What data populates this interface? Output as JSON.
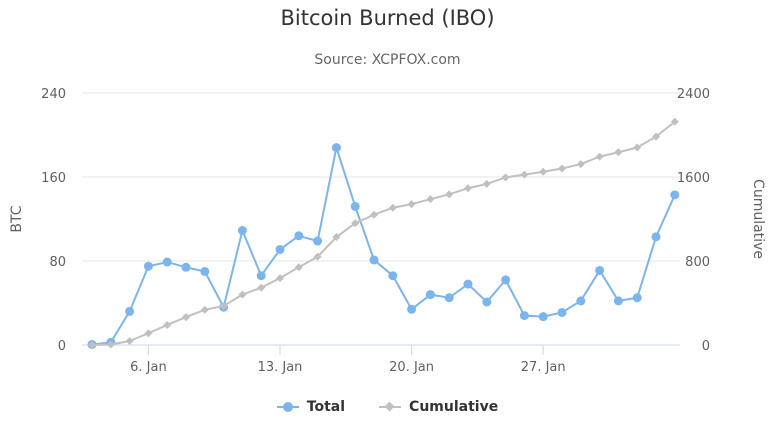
{
  "chart_data": {
    "type": "line",
    "title": "Bitcoin Burned (IBO)",
    "subtitle": "Source: XCPFOX.com",
    "x_ticks": [
      "6. Jan",
      "13. Jan",
      "20. Jan",
      "27. Jan"
    ],
    "x_tick_days": [
      6,
      13,
      20,
      27
    ],
    "x_start_day": 3,
    "left_axis": {
      "title": "BTC",
      "ticks": [
        "0",
        "80",
        "160",
        "240"
      ],
      "range": [
        0,
        240
      ]
    },
    "right_axis": {
      "title": "Cumulative",
      "ticks": [
        "0",
        "800",
        "1600",
        "2400"
      ],
      "range": [
        0,
        2400
      ]
    },
    "grid": true,
    "legend_position": "bottom-center",
    "series": [
      {
        "name": "Total",
        "axis": "left",
        "color": "#7cb5ec",
        "marker": "circle",
        "values": [
          0.5,
          2.5,
          32,
          75,
          79,
          74,
          70,
          36,
          109,
          66,
          91,
          104,
          99,
          188,
          132,
          81,
          66,
          34,
          48,
          45,
          58,
          41,
          62,
          28,
          27,
          31,
          42,
          71,
          42,
          45,
          103,
          143
        ]
      },
      {
        "name": "Cumulative",
        "axis": "right",
        "color": "#c0c0c0",
        "marker": "diamond",
        "values": [
          0,
          5,
          38,
          112,
          191,
          266,
          335,
          372,
          480,
          546,
          637,
          741,
          840,
          1028,
          1160,
          1241,
          1307,
          1342,
          1389,
          1435,
          1493,
          1534,
          1596,
          1623,
          1650,
          1681,
          1723,
          1794,
          1836,
          1881,
          1984,
          2127
        ]
      }
    ]
  },
  "legend": {
    "total_label": "Total",
    "cumulative_label": "Cumulative"
  }
}
